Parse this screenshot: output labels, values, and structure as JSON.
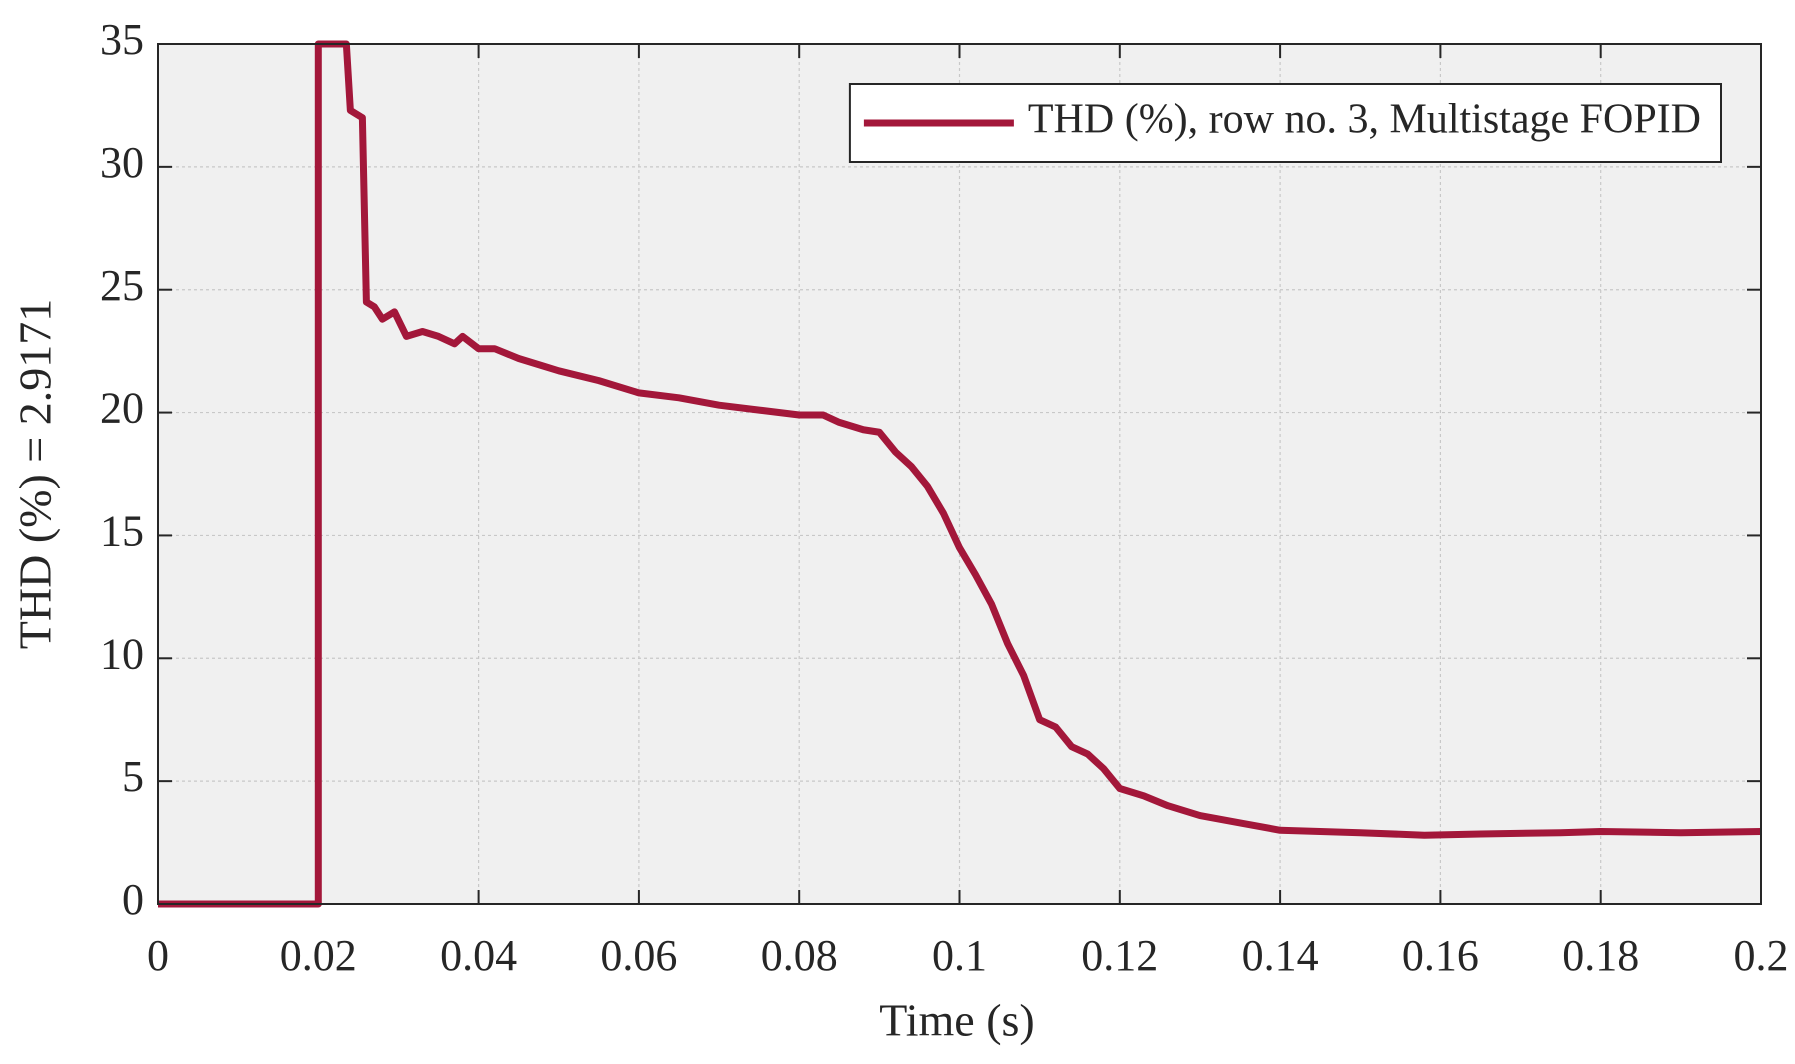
{
  "chart_data": {
    "type": "line",
    "xlabel": "Time (s)",
    "ylabel": "THD (%) = 2.9171",
    "x": [
      0,
      0.02,
      0.02,
      0.0235,
      0.024,
      0.0255,
      0.026,
      0.027,
      0.028,
      0.0295,
      0.031,
      0.033,
      0.035,
      0.037,
      0.038,
      0.04,
      0.042,
      0.045,
      0.048,
      0.05,
      0.055,
      0.06,
      0.065,
      0.07,
      0.075,
      0.08,
      0.083,
      0.085,
      0.088,
      0.09,
      0.092,
      0.094,
      0.096,
      0.098,
      0.1,
      0.102,
      0.104,
      0.106,
      0.108,
      0.11,
      0.112,
      0.114,
      0.116,
      0.118,
      0.12,
      0.123,
      0.126,
      0.13,
      0.135,
      0.14,
      0.15,
      0.158,
      0.165,
      0.175,
      0.18,
      0.19,
      0.2
    ],
    "series": [
      {
        "name": "THD (%), row no. 3, Multistage FOPID",
        "color": "#a3173a",
        "values": [
          0,
          0,
          35,
          35,
          32.3,
          32,
          24.5,
          24.3,
          23.8,
          24.1,
          23.1,
          23.3,
          23.1,
          22.8,
          23.1,
          22.6,
          22.6,
          22.2,
          21.9,
          21.7,
          21.3,
          20.8,
          20.6,
          20.3,
          20.1,
          19.9,
          19.9,
          19.6,
          19.3,
          19.2,
          18.4,
          17.8,
          17.0,
          15.9,
          14.5,
          13.4,
          12.2,
          10.6,
          9.3,
          7.5,
          7.2,
          6.4,
          6.1,
          5.5,
          4.7,
          4.4,
          4.0,
          3.6,
          3.3,
          3.0,
          2.9,
          2.8,
          2.85,
          2.9,
          2.95,
          2.9,
          2.95
        ]
      }
    ],
    "xlim": [
      0,
      0.2
    ],
    "xticks": [
      0,
      0.02,
      0.04,
      0.06,
      0.08,
      0.1,
      0.12,
      0.14,
      0.16,
      0.18,
      0.2
    ],
    "ylim": [
      0,
      35
    ],
    "yticks": [
      0,
      5,
      10,
      15,
      20,
      25,
      30,
      35
    ],
    "grid": true,
    "legend": "upper right"
  }
}
